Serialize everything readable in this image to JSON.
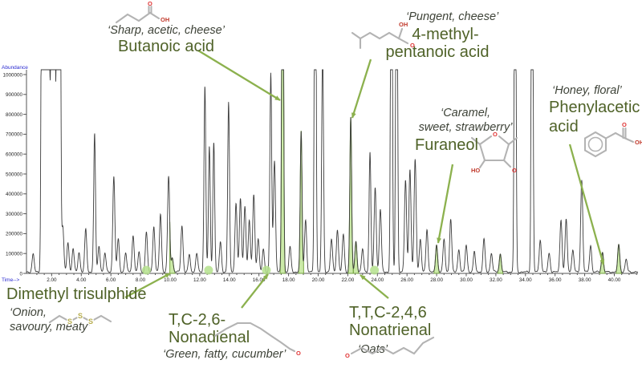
{
  "figure": {
    "background": "#ffffff"
  },
  "annotations": {
    "butanoic": {
      "descriptor": "‘Sharp, acetic, cheese’",
      "name": "Butanoic acid"
    },
    "methylpentanoic": {
      "descriptor": "‘Pungent, cheese’",
      "name_line1": "4-methyl-",
      "name_line2": "pentanoic acid"
    },
    "furaneol": {
      "descriptor_line1": "‘Caramel,",
      "descriptor_line2": "sweet, strawberry’",
      "name": "Furaneol"
    },
    "phenylacetic": {
      "descriptor": "‘Honey, floral’",
      "name_line1": "Phenylacetic",
      "name_line2": "acid"
    },
    "dimethyl_trisulphide": {
      "name": "Dimethyl trisulphide",
      "descriptor_line1": "‘Onion,",
      "descriptor_line2": "savoury, meaty’"
    },
    "nonadienal": {
      "name_line1": "T,C-2,6-",
      "name_line2": "Nonadienal",
      "descriptor": "‘Green, fatty, cucumber’"
    },
    "nonatrienal": {
      "name_line1": "T,T,C-2,4,6",
      "name_line2": "Nonatrienal",
      "descriptor": "‘Oats’"
    }
  },
  "chart_data": {
    "type": "line",
    "xlabel": "Time-->",
    "ylabel": "Abundance",
    "xlim": [
      0.3,
      41.6
    ],
    "ylim": [
      0,
      1050000
    ],
    "x_ticks": {
      "start": 2,
      "end": 40,
      "step": 2,
      "decimals": 2
    },
    "y_ticks": {
      "start": 0,
      "end": 1000000,
      "step": 100000
    },
    "grid": false,
    "peaks": [
      [
        0.75,
        90000
      ],
      [
        1.35,
        2500000
      ],
      [
        1.5,
        2500000
      ],
      [
        1.62,
        2500000
      ],
      [
        1.78,
        2500000
      ],
      [
        1.9,
        500000
      ],
      [
        2.02,
        2500000
      ],
      [
        2.18,
        2500000
      ],
      [
        2.38,
        2500000
      ],
      [
        2.55,
        2500000
      ],
      [
        2.75,
        230000
      ],
      [
        3.1,
        150000
      ],
      [
        3.45,
        120000
      ],
      [
        3.85,
        100000
      ],
      [
        4.3,
        215000
      ],
      [
        4.9,
        700000
      ],
      [
        5.2,
        130000
      ],
      [
        5.6,
        95000
      ],
      [
        6.2,
        480000
      ],
      [
        6.5,
        165000
      ],
      [
        7.0,
        95000
      ],
      [
        7.5,
        185000
      ],
      [
        7.9,
        100000
      ],
      [
        8.4,
        200000
      ],
      [
        8.9,
        230000
      ],
      [
        9.35,
        290000
      ],
      [
        9.9,
        480000
      ],
      [
        10.15,
        70000
      ],
      [
        10.8,
        235000
      ],
      [
        11.3,
        85000
      ],
      [
        11.8,
        95000
      ],
      [
        12.35,
        935000
      ],
      [
        12.65,
        630000
      ],
      [
        12.95,
        655000
      ],
      [
        13.4,
        150000
      ],
      [
        13.95,
        855000
      ],
      [
        14.45,
        345000
      ],
      [
        14.75,
        370000
      ],
      [
        15.05,
        335000
      ],
      [
        15.35,
        260000
      ],
      [
        15.65,
        390000
      ],
      [
        15.95,
        165000
      ],
      [
        16.3,
        115000
      ],
      [
        16.8,
        1000000
      ],
      [
        17.05,
        560000
      ],
      [
        17.6,
        2500000
      ],
      [
        18.1,
        125000
      ],
      [
        18.85,
        705000
      ],
      [
        19.15,
        265000
      ],
      [
        19.8,
        2500000
      ],
      [
        20.3,
        1150000
      ],
      [
        20.9,
        165000
      ],
      [
        21.3,
        215000
      ],
      [
        21.7,
        190000
      ],
      [
        22.2,
        775000
      ],
      [
        22.55,
        155000
      ],
      [
        23.0,
        115000
      ],
      [
        23.5,
        605000
      ],
      [
        23.85,
        425000
      ],
      [
        24.2,
        315000
      ],
      [
        24.95,
        2500000
      ],
      [
        25.3,
        2500000
      ],
      [
        25.9,
        465000
      ],
      [
        26.2,
        515000
      ],
      [
        26.55,
        565000
      ],
      [
        26.9,
        165000
      ],
      [
        27.35,
        215000
      ],
      [
        28.0,
        135000
      ],
      [
        28.5,
        165000
      ],
      [
        28.95,
        265000
      ],
      [
        29.5,
        115000
      ],
      [
        30.0,
        135000
      ],
      [
        30.55,
        100000
      ],
      [
        31.2,
        165000
      ],
      [
        31.7,
        95000
      ],
      [
        32.3,
        90000
      ],
      [
        33.3,
        2500000
      ],
      [
        34.45,
        2500000
      ],
      [
        35.0,
        165000
      ],
      [
        35.6,
        95000
      ],
      [
        36.4,
        265000
      ],
      [
        36.75,
        265000
      ],
      [
        37.2,
        115000
      ],
      [
        37.8,
        465000
      ],
      [
        38.4,
        135000
      ],
      [
        39.2,
        100000
      ],
      [
        40.3,
        135000
      ],
      [
        40.8,
        65000
      ]
    ],
    "highlighted_peak_times": [
      10.15,
      17.6,
      18.85,
      22.2,
      22.55,
      28.0,
      32.3,
      39.2,
      40.3
    ],
    "marker_dot_times": [
      8.4,
      12.6,
      16.5,
      23.8
    ],
    "compound_markers": [
      {
        "name": "Dimethyl trisulphide",
        "time": 10.15
      },
      {
        "name": "T,C-2,6-Nonadienal",
        "time": 16.5
      },
      {
        "name": "Butanoic acid",
        "time": 17.6
      },
      {
        "name": "4-methyl-pentanoic acid",
        "time": 22.2
      },
      {
        "name": "T,T,C-2,4,6 Nonatrienal",
        "time": 22.55
      },
      {
        "name": "Furaneol",
        "time": 28.0
      },
      {
        "name": "Phenylacetic acid",
        "time": 39.2
      }
    ],
    "colors": {
      "trace": "#3c3c3c",
      "axis": "#555555",
      "tick_label": "#222222",
      "axis_title_blue": "#2a2ad0",
      "highlight_fill": "#c9e9a4",
      "highlight_stroke": "#74a43e",
      "dot": "#b4e08c",
      "arrow": "#8cb14e",
      "name_green": "#4f6228",
      "descriptor": "#3d4237"
    }
  }
}
